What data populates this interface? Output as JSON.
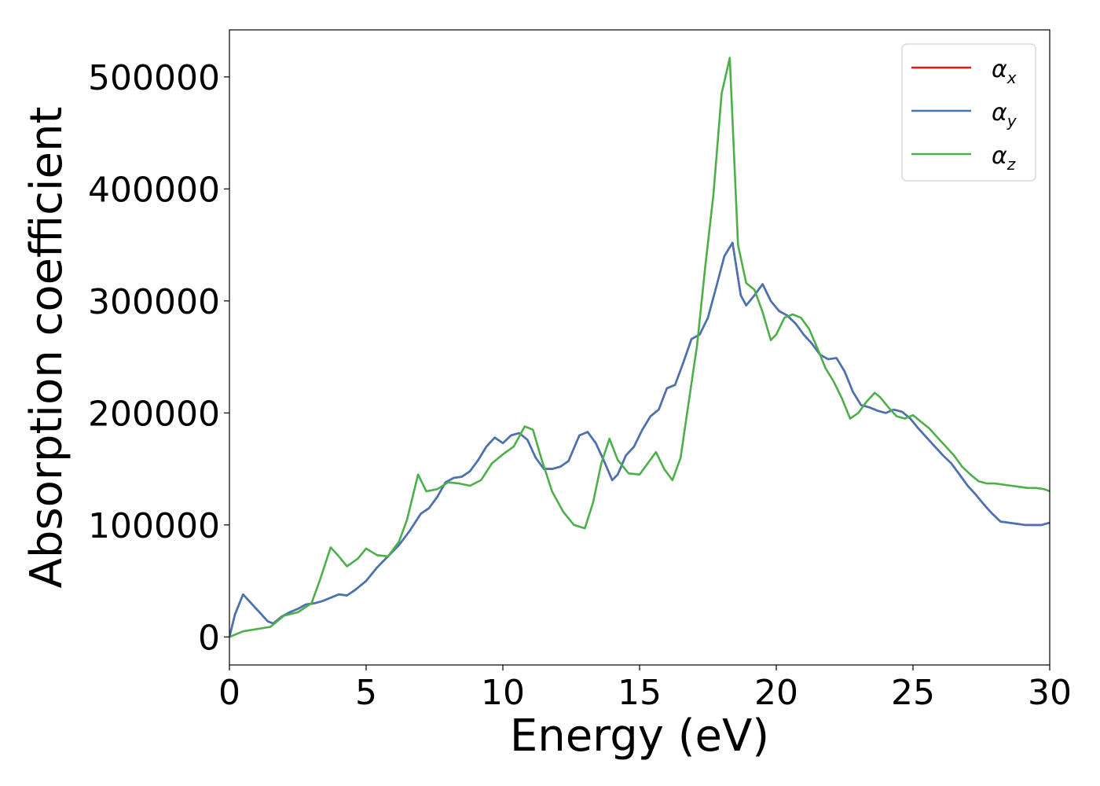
{
  "chart_data": {
    "type": "line",
    "title": "",
    "xlabel": "Energy (eV)",
    "ylabel": "Absorption coefficient",
    "xlim": [
      0,
      30
    ],
    "ylim": [
      -25000,
      542000
    ],
    "xticks": [
      0,
      5,
      10,
      15,
      20,
      25,
      30
    ],
    "xtick_labels": [
      "0",
      "5",
      "10",
      "15",
      "20",
      "25",
      "30"
    ],
    "yticks": [
      0,
      100000,
      200000,
      300000,
      400000,
      500000
    ],
    "ytick_labels": [
      "0",
      "100000",
      "200000",
      "300000",
      "400000",
      "500000"
    ],
    "grid": false,
    "legend_position": "top-right",
    "series": [
      {
        "name": "α_x",
        "legend_main": "α",
        "legend_sub": "x",
        "color": "#e41a1c",
        "x": [
          0,
          0.2,
          0.5,
          0.8,
          1.1,
          1.4,
          1.6,
          1.9,
          2.2,
          2.5,
          2.8,
          3.1,
          3.4,
          3.7,
          4.0,
          4.3,
          4.6,
          5.0,
          5.4,
          5.8,
          6.2,
          6.6,
          7.0,
          7.3,
          7.6,
          7.9,
          8.2,
          8.5,
          8.8,
          9.1,
          9.4,
          9.7,
          10.0,
          10.3,
          10.6,
          10.9,
          11.2,
          11.5,
          11.8,
          12.1,
          12.4,
          12.8,
          13.1,
          13.4,
          13.7,
          14.0,
          14.2,
          14.5,
          14.8,
          15.1,
          15.4,
          15.7,
          16.0,
          16.3,
          16.6,
          16.9,
          17.2,
          17.5,
          17.8,
          18.1,
          18.4,
          18.7,
          18.9,
          19.2,
          19.5,
          19.8,
          20.1,
          20.4,
          20.7,
          21.0,
          21.3,
          21.6,
          21.9,
          22.2,
          22.5,
          22.8,
          23.1,
          23.4,
          23.7,
          24.0,
          24.3,
          24.6,
          24.9,
          25.2,
          25.5,
          25.8,
          26.1,
          26.4,
          26.7,
          27.0,
          27.3,
          27.6,
          27.9,
          28.2,
          28.5,
          28.8,
          29.1,
          29.4,
          29.7,
          30.0
        ],
        "y": [
          0,
          20000,
          38000,
          30000,
          22000,
          14000,
          12000,
          18000,
          22000,
          25000,
          29000,
          30000,
          32000,
          35000,
          38000,
          37000,
          42000,
          50000,
          62000,
          72000,
          82000,
          95000,
          110000,
          115000,
          125000,
          138000,
          142000,
          143000,
          148000,
          158000,
          170000,
          178000,
          173000,
          180000,
          182000,
          176000,
          160000,
          150000,
          150000,
          152000,
          157000,
          180000,
          183000,
          173000,
          157000,
          140000,
          145000,
          162000,
          170000,
          185000,
          197000,
          203000,
          222000,
          225000,
          245000,
          266000,
          270000,
          285000,
          312000,
          340000,
          352000,
          305000,
          296000,
          305000,
          315000,
          300000,
          291000,
          287000,
          280000,
          270000,
          262000,
          252000,
          248000,
          249000,
          237000,
          219000,
          207000,
          205000,
          202000,
          200000,
          203000,
          201000,
          195000,
          186000,
          178000,
          170000,
          162000,
          155000,
          145000,
          135000,
          127000,
          118000,
          110000,
          103000,
          102000,
          101000,
          100000,
          100000,
          100000,
          102000
        ]
      },
      {
        "name": "α_y",
        "legend_main": "α",
        "legend_sub": "y",
        "color": "#4575b4",
        "x": [
          0,
          0.2,
          0.5,
          0.8,
          1.1,
          1.4,
          1.6,
          1.9,
          2.2,
          2.5,
          2.8,
          3.1,
          3.4,
          3.7,
          4.0,
          4.3,
          4.6,
          5.0,
          5.4,
          5.8,
          6.2,
          6.6,
          7.0,
          7.3,
          7.6,
          7.9,
          8.2,
          8.5,
          8.8,
          9.1,
          9.4,
          9.7,
          10.0,
          10.3,
          10.6,
          10.9,
          11.2,
          11.5,
          11.8,
          12.1,
          12.4,
          12.8,
          13.1,
          13.4,
          13.7,
          14.0,
          14.2,
          14.5,
          14.8,
          15.1,
          15.4,
          15.7,
          16.0,
          16.3,
          16.6,
          16.9,
          17.2,
          17.5,
          17.8,
          18.1,
          18.4,
          18.7,
          18.9,
          19.2,
          19.5,
          19.8,
          20.1,
          20.4,
          20.7,
          21.0,
          21.3,
          21.6,
          21.9,
          22.2,
          22.5,
          22.8,
          23.1,
          23.4,
          23.7,
          24.0,
          24.3,
          24.6,
          24.9,
          25.2,
          25.5,
          25.8,
          26.1,
          26.4,
          26.7,
          27.0,
          27.3,
          27.6,
          27.9,
          28.2,
          28.5,
          28.8,
          29.1,
          29.4,
          29.7,
          30.0
        ],
        "y": [
          0,
          20000,
          38000,
          30000,
          22000,
          14000,
          12000,
          18000,
          22000,
          25000,
          29000,
          30000,
          32000,
          35000,
          38000,
          37000,
          42000,
          50000,
          62000,
          72000,
          82000,
          95000,
          110000,
          115000,
          125000,
          138000,
          142000,
          143000,
          148000,
          158000,
          170000,
          178000,
          173000,
          180000,
          182000,
          176000,
          160000,
          150000,
          150000,
          152000,
          157000,
          180000,
          183000,
          173000,
          157000,
          140000,
          145000,
          162000,
          170000,
          185000,
          197000,
          203000,
          222000,
          225000,
          245000,
          266000,
          270000,
          285000,
          312000,
          340000,
          352000,
          305000,
          296000,
          305000,
          315000,
          300000,
          291000,
          287000,
          280000,
          270000,
          262000,
          252000,
          248000,
          249000,
          237000,
          219000,
          207000,
          205000,
          202000,
          200000,
          203000,
          201000,
          195000,
          186000,
          178000,
          170000,
          162000,
          155000,
          145000,
          135000,
          127000,
          118000,
          110000,
          103000,
          102000,
          101000,
          100000,
          100000,
          100000,
          102000
        ]
      },
      {
        "name": "α_z",
        "legend_main": "α",
        "legend_sub": "z",
        "color": "#4daf4a",
        "x": [
          0,
          0.5,
          1.0,
          1.5,
          2.0,
          2.5,
          3.0,
          3.3,
          3.7,
          4.0,
          4.3,
          4.7,
          5.0,
          5.4,
          5.8,
          6.2,
          6.5,
          6.9,
          7.2,
          7.6,
          8.0,
          8.4,
          8.8,
          9.2,
          9.6,
          10.0,
          10.4,
          10.8,
          11.1,
          11.4,
          11.8,
          12.2,
          12.6,
          13.0,
          13.3,
          13.6,
          13.9,
          14.2,
          14.6,
          15.0,
          15.3,
          15.6,
          15.9,
          16.2,
          16.5,
          16.8,
          17.1,
          17.4,
          17.7,
          18.0,
          18.3,
          18.6,
          18.9,
          19.2,
          19.5,
          19.8,
          20.0,
          20.3,
          20.6,
          20.9,
          21.2,
          21.5,
          21.8,
          22.1,
          22.4,
          22.7,
          23.0,
          23.3,
          23.6,
          23.8,
          24.1,
          24.4,
          24.7,
          25.0,
          25.3,
          25.6,
          25.9,
          26.2,
          26.5,
          26.8,
          27.1,
          27.4,
          27.7,
          28.0,
          28.3,
          28.6,
          28.9,
          29.2,
          29.5,
          29.8,
          30.0
        ],
        "y": [
          0,
          5000,
          7000,
          9000,
          19000,
          22000,
          30000,
          50000,
          80000,
          72000,
          63000,
          70000,
          79000,
          73000,
          72000,
          85000,
          105000,
          145000,
          130000,
          132000,
          138000,
          137000,
          135000,
          140000,
          155000,
          163000,
          170000,
          188000,
          185000,
          160000,
          130000,
          112000,
          100000,
          97000,
          120000,
          155000,
          177000,
          158000,
          146000,
          145000,
          155000,
          165000,
          150000,
          140000,
          160000,
          210000,
          260000,
          330000,
          395000,
          485000,
          517000,
          350000,
          316000,
          310000,
          290000,
          265000,
          270000,
          285000,
          288000,
          285000,
          275000,
          258000,
          240000,
          228000,
          213000,
          195000,
          200000,
          210000,
          218000,
          214000,
          205000,
          197000,
          195000,
          198000,
          192000,
          186000,
          178000,
          170000,
          162000,
          152000,
          145000,
          139000,
          137000,
          137000,
          136000,
          135000,
          134000,
          133000,
          133000,
          132000,
          130000
        ]
      }
    ]
  }
}
